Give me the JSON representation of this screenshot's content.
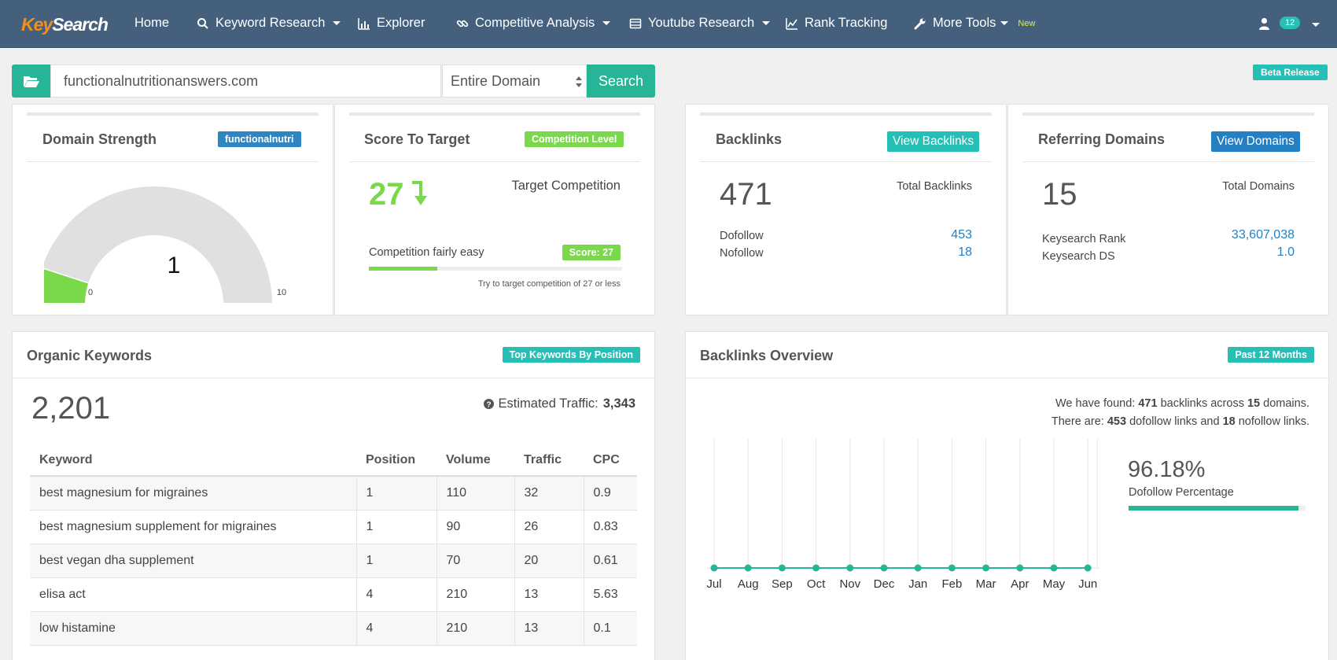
{
  "brand": {
    "part1": "Key",
    "part2": "Search"
  },
  "nav": {
    "items": [
      {
        "label": "Home"
      },
      {
        "label": "Keyword Research"
      },
      {
        "label": "Explorer"
      },
      {
        "label": "Competitive Analysis"
      },
      {
        "label": "Youtube Research"
      },
      {
        "label": "Rank Tracking"
      },
      {
        "label": "More Tools"
      }
    ],
    "new_tag": "New",
    "user_count": "12"
  },
  "search": {
    "value": "functionalnutritionanswers.com",
    "scope": "Entire Domain",
    "button": "Search",
    "beta": "Beta Release"
  },
  "domain_strength": {
    "title": "Domain Strength",
    "tag": "functionalnutri",
    "value": "1",
    "min": "0",
    "max": "10",
    "fill_fraction": 0.1
  },
  "score_to_target": {
    "title": "Score To Target",
    "tag": "Competition Level",
    "score": "27",
    "target_label": "Target Competition",
    "desc": "Competition fairly easy",
    "score_tag": "Score: 27",
    "hint": "Try to target competition of 27 or less",
    "progress_fraction": 0.27
  },
  "backlinks": {
    "title": "Backlinks",
    "button": "View Backlinks",
    "total": "471",
    "total_label": "Total Backlinks",
    "dofollow_label": "Dofollow",
    "dofollow": "453",
    "nofollow_label": "Nofollow",
    "nofollow": "18"
  },
  "referring_domains": {
    "title": "Referring Domains",
    "button": "View Domains",
    "total": "15",
    "total_label": "Total Domains",
    "rank_label": "Keysearch Rank",
    "rank": "33,607,038",
    "ds_label": "Keysearch DS",
    "ds": "1.0"
  },
  "organic_keywords": {
    "title": "Organic Keywords",
    "tag": "Top Keywords By Position",
    "total": "2,201",
    "traffic_label": "Estimated Traffic:",
    "traffic": "3,343",
    "columns": [
      "Keyword",
      "Position",
      "Volume",
      "Traffic",
      "CPC"
    ],
    "rows": [
      [
        "best magnesium for migraines",
        "1",
        "110",
        "32",
        "0.9"
      ],
      [
        "best magnesium supplement for migraines",
        "1",
        "90",
        "26",
        "0.83"
      ],
      [
        "best vegan dha supplement",
        "1",
        "70",
        "20",
        "0.61"
      ],
      [
        "elisa act",
        "4",
        "210",
        "13",
        "5.63"
      ],
      [
        "low histamine",
        "4",
        "210",
        "13",
        "0.1"
      ]
    ]
  },
  "backlinks_overview": {
    "title": "Backlinks Overview",
    "tag": "Past 12 Months",
    "line1_pre": "We have found:",
    "line1_a": "471",
    "line1_mid": "backlinks across",
    "line1_b": "15",
    "line1_post": "domains.",
    "line2_pre": "There are:",
    "line2_a": "453",
    "line2_mid": "dofollow links and",
    "line2_b": "18",
    "line2_post": "nofollow links.",
    "percent": "96.18%",
    "percent_label": "Dofollow Percentage",
    "percent_fraction": 0.9618
  },
  "chart_data": {
    "type": "line",
    "x": [
      "Jul",
      "Aug",
      "Sep",
      "Oct",
      "Nov",
      "Dec",
      "Jan",
      "Feb",
      "Mar",
      "Apr",
      "May",
      "Jun"
    ],
    "series": [
      {
        "values": [
          0,
          0,
          0,
          0,
          0,
          0,
          0,
          0,
          0,
          0,
          0,
          0
        ]
      }
    ],
    "grid": true,
    "color": "#26b597"
  },
  "colors": {
    "teal": "#26b597",
    "green": "#7ad94a",
    "blue": "#2580c3",
    "nav": "#44607c"
  }
}
